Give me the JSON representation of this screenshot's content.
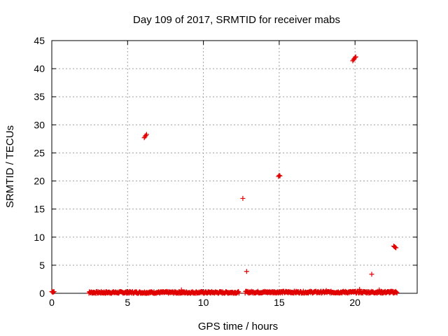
{
  "chart_data": {
    "type": "scatter",
    "title": "Day 109 of 2017, SRMTID for receiver mabs",
    "xlabel": "GPS time / hours",
    "ylabel": "SRMTID / TECUs",
    "xlim": [
      0,
      24.1
    ],
    "ylim": [
      0,
      45
    ],
    "x_ticks": [
      0,
      5,
      10,
      15,
      20
    ],
    "y_ticks": [
      0,
      5,
      10,
      15,
      20,
      25,
      30,
      35,
      40,
      45
    ],
    "grid": true,
    "marker": "+",
    "series": [
      {
        "name": "SRMTID",
        "color": "#e00000",
        "baseline_clusters": [
          {
            "x_start": 0.0,
            "x_end": 0.15,
            "y": 0.3
          },
          {
            "x_start": 2.45,
            "x_end": 12.35,
            "y": 0.15
          },
          {
            "x_start": 12.75,
            "x_end": 22.8,
            "y": 0.2
          }
        ],
        "points": [
          {
            "x": 6.1,
            "y": 27.7
          },
          {
            "x": 6.15,
            "y": 27.9
          },
          {
            "x": 6.2,
            "y": 28.1
          },
          {
            "x": 6.25,
            "y": 28.3
          },
          {
            "x": 12.6,
            "y": 16.9
          },
          {
            "x": 12.85,
            "y": 3.9
          },
          {
            "x": 14.95,
            "y": 20.8
          },
          {
            "x": 15.0,
            "y": 21.0
          },
          {
            "x": 15.05,
            "y": 20.9
          },
          {
            "x": 19.85,
            "y": 41.4
          },
          {
            "x": 19.9,
            "y": 41.6
          },
          {
            "x": 19.95,
            "y": 41.8
          },
          {
            "x": 20.0,
            "y": 42.0
          },
          {
            "x": 20.05,
            "y": 42.1
          },
          {
            "x": 21.1,
            "y": 3.4
          },
          {
            "x": 22.55,
            "y": 8.4
          },
          {
            "x": 22.6,
            "y": 8.3
          },
          {
            "x": 22.65,
            "y": 8.2
          },
          {
            "x": 22.7,
            "y": 8.1
          },
          {
            "x": 8.55,
            "y": 0.6
          },
          {
            "x": 18.1,
            "y": 0.5
          },
          {
            "x": 20.3,
            "y": 0.7
          },
          {
            "x": 21.6,
            "y": 0.6
          }
        ]
      }
    ]
  }
}
